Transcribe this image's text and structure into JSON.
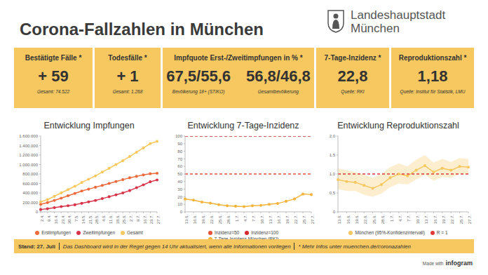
{
  "header": {
    "title": "Corona-Fallzahlen in München",
    "logo_lines": [
      "Landeshauptstadt",
      "München"
    ]
  },
  "kpis": [
    {
      "label": "Bestätigte Fälle *",
      "parts": [
        {
          "value": "+ 59",
          "note": "Gesamt: 74.522"
        }
      ]
    },
    {
      "label": "Todesfälle *",
      "parts": [
        {
          "value": "+ 1",
          "note": "Gesamt: 1.268"
        }
      ]
    },
    {
      "label": "Impfquote Erst-/Zweitimpfungen in % *",
      "parts": [
        {
          "value": "67,5/55,6",
          "note": "Bevölkerung 18+ (STIKO)"
        },
        {
          "value": "56,8/46,8",
          "note": "Gesamtbevölkerung"
        }
      ]
    },
    {
      "label": "7-Tage-Inzidenz *",
      "parts": [
        {
          "value": "22,8",
          "note": "Quelle: RKI"
        }
      ]
    },
    {
      "label": "Reproduktionszahl *",
      "parts": [
        {
          "value": "1,18",
          "note": "Quelle: Institut für Statistik, LMU"
        }
      ]
    }
  ],
  "chart_data": [
    {
      "type": "line",
      "title": "Entwicklung Impfungen",
      "categories": [
        "2.4.",
        "9.4.",
        "16.4.",
        "23.4.",
        "30.4.",
        "7.5.",
        "14.5.",
        "21.5.",
        "28.5.",
        "4.6.",
        "11.6.",
        "18.6.",
        "25.6.",
        "2.7.",
        "9.7.",
        "16.7.",
        "23.7.",
        "27.7."
      ],
      "series": [
        {
          "name": "Erstimpfungen",
          "color": "#ec6a3c",
          "marker": "circle",
          "values": [
            160000,
            195000,
            240000,
            290000,
            340000,
            390000,
            440000,
            480000,
            520000,
            560000,
            600000,
            640000,
            680000,
            720000,
            750000,
            780000,
            805000,
            815000
          ]
        },
        {
          "name": "Zweitimpfungen",
          "color": "#d9344a",
          "marker": "circle",
          "values": [
            50000,
            65000,
            90000,
            110000,
            130000,
            150000,
            180000,
            210000,
            240000,
            280000,
            320000,
            360000,
            400000,
            450000,
            510000,
            570000,
            635000,
            675000
          ]
        },
        {
          "name": "Gesamt",
          "color": "#f6c85f",
          "marker": "circle",
          "values": [
            210000,
            260000,
            330000,
            400000,
            470000,
            540000,
            620000,
            690000,
            760000,
            840000,
            920000,
            1000000,
            1080000,
            1170000,
            1260000,
            1350000,
            1440000,
            1490000
          ]
        }
      ],
      "ylim": [
        0,
        1600000
      ],
      "yticks": [
        0,
        {
          "value": 200000,
          "label": "200.000"
        },
        {
          "value": 400000,
          "label": "400.000"
        },
        {
          "value": 600000,
          "label": "600.000"
        },
        {
          "value": 800000,
          "label": "800.000"
        },
        {
          "value": 1000000,
          "label": "1.000.000"
        },
        {
          "value": 1200000,
          "label": "1.200.000"
        },
        {
          "value": 1400000,
          "label": "1.400.000"
        },
        {
          "value": 1600000,
          "label": "1.600.000"
        }
      ],
      "grid": false,
      "legend": "bottom"
    },
    {
      "type": "line",
      "title": "Entwicklung 7-Tage-Inzidenz",
      "categories": [
        "13.6.",
        "16.6.",
        "19.6.",
        "22.6.",
        "25.6.",
        "28.6.",
        "1.7.",
        "4.7.",
        "7.7.",
        "10.7.",
        "13.7.",
        "16.7.",
        "19.7.",
        "22.7.",
        "25.7.",
        "27.7."
      ],
      "series": [
        {
          "name": "Inzidenz=50",
          "color": "#e8503a",
          "marker": "none",
          "line_style": "dashed",
          "values": [
            50,
            50,
            50,
            50,
            50,
            50,
            50,
            50,
            50,
            50,
            50,
            50,
            50,
            50,
            50,
            50
          ]
        },
        {
          "name": "Inzidenz=100",
          "color": "#d42a2a",
          "marker": "none",
          "line_style": "dashed",
          "values": [
            100,
            100,
            100,
            100,
            100,
            100,
            100,
            100,
            100,
            100,
            100,
            100,
            100,
            100,
            100,
            100
          ]
        },
        {
          "name": "7-Tage-Inzidenz München (RKI)",
          "color": "#f2b43c",
          "marker": "circle",
          "line_style": "solid",
          "values": [
            17,
            15.5,
            13,
            11.5,
            9.5,
            8,
            7.5,
            7,
            8,
            8.5,
            10,
            11,
            14,
            17,
            23.5,
            22.8
          ]
        }
      ],
      "ylim": [
        0,
        100
      ],
      "yticks": [
        0,
        10,
        20,
        30,
        40,
        50,
        60,
        70,
        80,
        90,
        100
      ],
      "grid": false,
      "legend": "bottom"
    },
    {
      "type": "line",
      "title": "Entwicklung Reproduktionszahl",
      "categories": [
        "13.6.",
        "16.6.",
        "19.6.",
        "22.6.",
        "25.6.",
        "28.6.",
        "1.7.",
        "4.7.",
        "7.7.",
        "10.7.",
        "13.7.",
        "16.7.",
        "19.7.",
        "22.7.",
        "25.7.",
        "27.7."
      ],
      "series": [
        {
          "name": "München (95%-Konfidenzintervall)",
          "color": "#f6c85f",
          "marker": "circle",
          "line_style": "solid",
          "values": [
            0.85,
            0.8,
            0.78,
            0.7,
            0.62,
            0.72,
            0.9,
            1.0,
            0.95,
            1.1,
            1.22,
            1.05,
            1.15,
            1.1,
            1.2,
            1.18
          ],
          "ci_lower": [
            0.6,
            0.55,
            0.55,
            0.45,
            0.4,
            0.48,
            0.65,
            0.75,
            0.72,
            0.85,
            0.98,
            0.82,
            0.92,
            0.9,
            1.0,
            0.98
          ],
          "ci_upper": [
            1.15,
            1.1,
            1.05,
            0.98,
            0.9,
            1.0,
            1.18,
            1.28,
            1.2,
            1.38,
            1.5,
            1.3,
            1.4,
            1.32,
            1.42,
            1.4
          ]
        },
        {
          "name": "R = 1",
          "color": "#e03a3a",
          "marker": "none",
          "line_style": "dashed",
          "values": [
            1,
            1,
            1,
            1,
            1,
            1,
            1,
            1,
            1,
            1,
            1,
            1,
            1,
            1,
            1,
            1
          ]
        }
      ],
      "ylim": [
        0,
        2
      ],
      "yticks": [
        0,
        {
          "value": 0.5,
          "label": "0,5"
        },
        {
          "value": 1,
          "label": "1,0"
        },
        {
          "value": 1.5,
          "label": "1,5"
        },
        {
          "value": 2,
          "label": "2,0"
        }
      ],
      "grid": false,
      "legend": "bottom"
    }
  ],
  "footer": {
    "stand": "Stand: 27. Juli",
    "notice": "Das Dashboard wird in der Regel gegen 14 Uhr aktualisiert, wenn alle Informationen vorliegen",
    "more": "* Mehr Infos unter muenchen.de/coronazahlen",
    "credit": [
      "Made with",
      "infogram"
    ]
  }
}
